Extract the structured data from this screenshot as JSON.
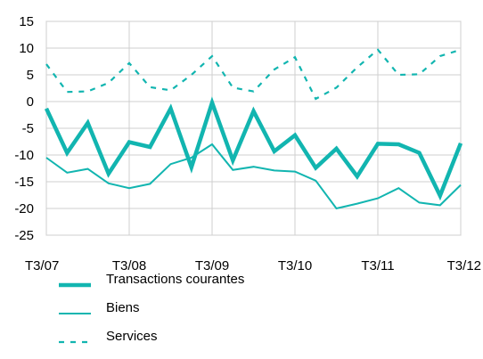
{
  "chart_data": {
    "type": "line",
    "title": "",
    "xlabel": "",
    "ylabel": "",
    "ylim": [
      -25,
      15
    ],
    "yticks": [
      15,
      10,
      5,
      0,
      -5,
      -10,
      -15,
      -20,
      -25
    ],
    "xtick_labels": [
      "T3/07",
      "T3/08",
      "T3/09",
      "T3/10",
      "T3/11",
      "T3/12"
    ],
    "x": [
      "T3/07",
      "T4/07",
      "T1/08",
      "T2/08",
      "T3/08",
      "T4/08",
      "T1/09",
      "T2/09",
      "T3/09",
      "T4/09",
      "T1/10",
      "T2/10",
      "T3/10",
      "T4/10",
      "T1/11",
      "T2/11",
      "T3/11",
      "T4/11",
      "T1/12",
      "T2/12",
      "T3/12"
    ],
    "grid": true,
    "legend_position": "bottom-left",
    "series": [
      {
        "name": "Transactions courantes",
        "style": "thick-solid",
        "color": "#12B5B0",
        "values": [
          -1.3,
          -9.6,
          -4.0,
          -13.5,
          -7.6,
          -8.5,
          -1.3,
          -12.3,
          -0.2,
          -11.0,
          -1.8,
          -9.3,
          -6.3,
          -12.4,
          -8.8,
          -14.0,
          -7.9,
          -8.0,
          -9.6,
          -17.6,
          -7.8
        ]
      },
      {
        "name": "Biens",
        "style": "thin-solid",
        "color": "#12B5B0",
        "values": [
          -10.5,
          -13.3,
          -12.6,
          -15.3,
          -16.2,
          -15.4,
          -11.7,
          -10.5,
          -8.0,
          -12.8,
          -12.2,
          -12.9,
          -13.1,
          -14.8,
          -20.0,
          -19.1,
          -18.1,
          -16.2,
          -18.9,
          -19.4,
          -15.6
        ]
      },
      {
        "name": "Services",
        "style": "dashed",
        "color": "#12B5B0",
        "values": [
          7.0,
          1.8,
          1.9,
          3.5,
          7.2,
          2.7,
          2.1,
          5.0,
          8.5,
          2.6,
          1.9,
          6.0,
          8.3,
          0.5,
          2.6,
          6.4,
          9.7,
          5.0,
          5.1,
          8.5,
          9.7
        ]
      }
    ]
  }
}
